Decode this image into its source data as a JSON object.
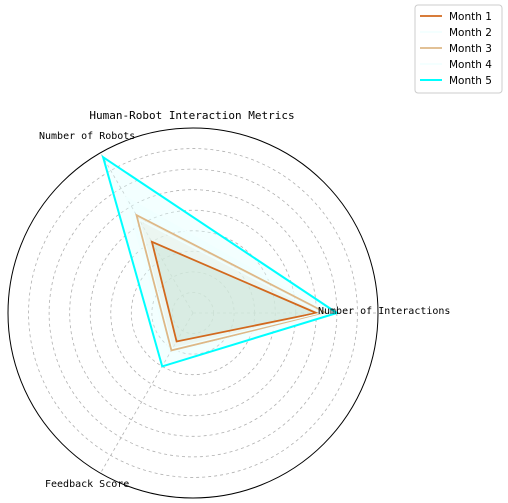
{
  "chart_data": {
    "type": "radar",
    "title": "Human-Robot Interaction Metrics",
    "axes": [
      "Number of Interactions",
      "Number of Robots",
      "Feedback Score"
    ],
    "rmax": 1800,
    "grid_values": [
      200,
      400,
      600,
      800,
      1000,
      1200,
      1400,
      1600,
      1800
    ],
    "grid": true,
    "legend_position": "top-right",
    "series": [
      {
        "name": "Month 1",
        "values": [
          1200,
          800,
          320
        ],
        "color": "#d2691e",
        "fill": "#2e8b57",
        "fill_opacity": 0.35,
        "line_width": 1.8
      },
      {
        "name": "Month 2",
        "values": [
          1250,
          1050,
          400
        ],
        "color": "#f0ffff",
        "fill": "#f0ffff",
        "fill_opacity": 0.25,
        "line_width": 1.5
      },
      {
        "name": "Month 3",
        "values": [
          1300,
          1100,
          420
        ],
        "color": "#deb887",
        "fill": "#deb887",
        "fill_opacity": 0.25,
        "line_width": 1.8
      },
      {
        "name": "Month 4",
        "values": [
          1320,
          1300,
          450
        ],
        "color": "#f0ffff",
        "fill": "#f0ffff",
        "fill_opacity": 0.25,
        "line_width": 1.5
      },
      {
        "name": "Month 5",
        "values": [
          1400,
          1750,
          600
        ],
        "color": "#00ffff",
        "fill": "#e0ffff",
        "fill_opacity": 0.4,
        "line_width": 2.0
      }
    ]
  }
}
